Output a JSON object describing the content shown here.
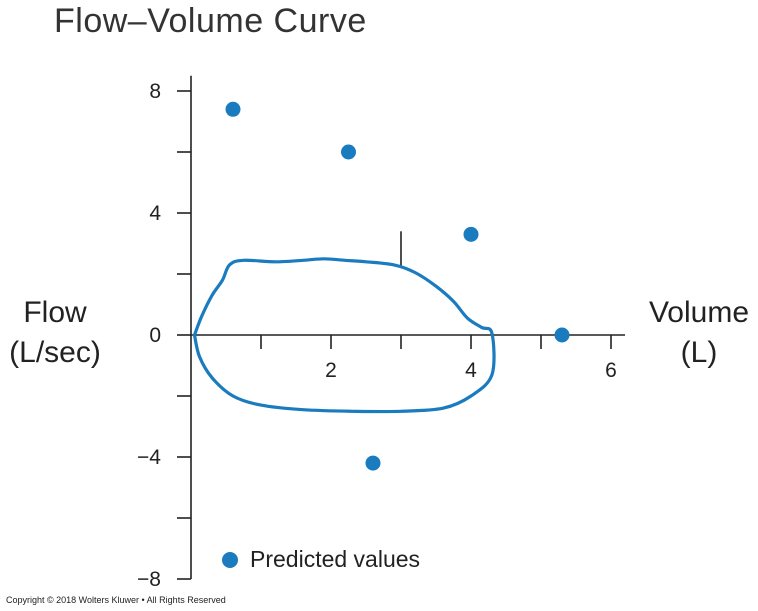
{
  "chart_data": {
    "type": "scatter",
    "title": "Flow–Volume Curve",
    "xlabel": "Volume (L)",
    "xlabel_lines": [
      "Volume",
      "(L)"
    ],
    "ylabel": "Flow (L/sec)",
    "ylabel_lines": [
      "Flow",
      "(L/sec)"
    ],
    "xlim": [
      0,
      6.2
    ],
    "ylim": [
      -8,
      8.5
    ],
    "x_ticks": [
      2,
      4,
      6
    ],
    "x_minor_ticks": [
      1,
      3,
      5
    ],
    "y_ticks": [
      8,
      4,
      0,
      -4,
      -8
    ],
    "y_tick_labels": [
      "8",
      "4",
      "0",
      "−4",
      "−8"
    ],
    "y_minor_ticks": [
      6,
      2,
      -2,
      -6
    ],
    "grid": false,
    "legend_position": "bottom-left",
    "series": [
      {
        "name": "Predicted values",
        "type": "scatter",
        "color": "#1a7bbf",
        "points": [
          {
            "x": 0.6,
            "y": 7.4
          },
          {
            "x": 2.25,
            "y": 6.0
          },
          {
            "x": 4.0,
            "y": 3.3
          },
          {
            "x": 5.3,
            "y": 0.0
          },
          {
            "x": 2.6,
            "y": -4.2
          }
        ]
      },
      {
        "type": "line",
        "color": "#1a7bbf",
        "closed": true,
        "points": [
          {
            "x": 0.05,
            "y": 0.0
          },
          {
            "x": 0.15,
            "y": 0.6
          },
          {
            "x": 0.3,
            "y": 1.3
          },
          {
            "x": 0.45,
            "y": 1.8
          },
          {
            "x": 0.55,
            "y": 2.3
          },
          {
            "x": 0.75,
            "y": 2.45
          },
          {
            "x": 1.2,
            "y": 2.4
          },
          {
            "x": 1.6,
            "y": 2.45
          },
          {
            "x": 1.9,
            "y": 2.5
          },
          {
            "x": 2.2,
            "y": 2.45
          },
          {
            "x": 2.5,
            "y": 2.4
          },
          {
            "x": 2.9,
            "y": 2.3
          },
          {
            "x": 3.2,
            "y": 2.05
          },
          {
            "x": 3.5,
            "y": 1.6
          },
          {
            "x": 3.75,
            "y": 1.1
          },
          {
            "x": 3.95,
            "y": 0.55
          },
          {
            "x": 4.15,
            "y": 0.25
          },
          {
            "x": 4.3,
            "y": 0.05
          },
          {
            "x": 4.3,
            "y": -1.3
          },
          {
            "x": 4.0,
            "y": -2.0
          },
          {
            "x": 3.6,
            "y": -2.4
          },
          {
            "x": 3.0,
            "y": -2.5
          },
          {
            "x": 2.3,
            "y": -2.5
          },
          {
            "x": 1.6,
            "y": -2.45
          },
          {
            "x": 1.0,
            "y": -2.3
          },
          {
            "x": 0.6,
            "y": -2.0
          },
          {
            "x": 0.3,
            "y": -1.4
          },
          {
            "x": 0.12,
            "y": -0.7
          },
          {
            "x": 0.05,
            "y": 0.0
          }
        ]
      }
    ],
    "annotation_marks": [
      {
        "x": 3.0,
        "y_from": 2.25,
        "y_to": 3.4
      }
    ]
  },
  "footer": {
    "copyright": "Copyright © 2018 Wolters Kluwer • All Rights Reserved"
  }
}
